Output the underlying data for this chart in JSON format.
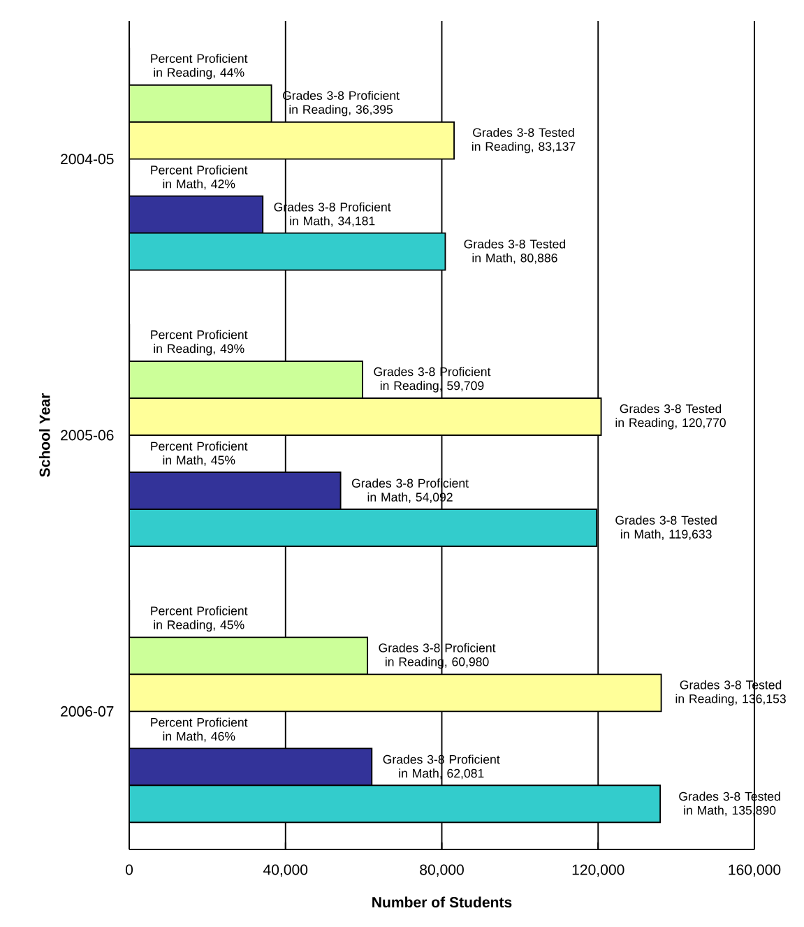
{
  "chart_data": {
    "type": "bar",
    "orientation": "horizontal",
    "categories": [
      "2004-05",
      "2005-06",
      "2006-07"
    ],
    "xlabel": "Number of Students",
    "ylabel": "School Year",
    "xlim": [
      0,
      160000
    ],
    "xticks": [
      0,
      {
        "value": 40000,
        "label": "40,000"
      },
      {
        "value": 80000,
        "label": "80,000"
      },
      {
        "value": 120000,
        "label": "120,000"
      },
      {
        "value": 160000,
        "label": "160,000"
      }
    ],
    "grid": "x",
    "series": [
      {
        "color": "#ffffff",
        "values": [
          44,
          49,
          45
        ],
        "value_labels": [
          "Percent Proficient in Reading, 44%",
          "Percent Proficient in Reading, 49%",
          "Percent Proficient in Reading, 45%"
        ]
      },
      {
        "color": "#ccff99",
        "values": [
          36395,
          59709,
          60980
        ],
        "value_labels": [
          "Grades 3-8 Proficient in Reading, 36,395",
          "Grades 3-8 Proficient in Reading, 59,709",
          "Grades 3-8 Proficient in Reading, 60,980"
        ]
      },
      {
        "color": "#ffff99",
        "values": [
          83137,
          120770,
          136153
        ],
        "value_labels": [
          "Grades 3-8 Tested in Reading, 83,137",
          "Grades 3-8 Tested in Reading, 120,770",
          "Grades 3-8 Tested in Reading, 136,153"
        ]
      },
      {
        "color": "#ffffff",
        "values": [
          42,
          45,
          46
        ],
        "value_labels": [
          "Percent Proficient in Math, 42%",
          "Percent Proficient in Math, 45%",
          "Percent Proficient in Math, 46%"
        ]
      },
      {
        "color": "#333399",
        "values": [
          34181,
          54092,
          62081
        ],
        "value_labels": [
          "Grades 3-8 Proficient in Math, 34,181",
          "Grades 3-8 Proficient in Math, 54,092",
          "Grades 3-8 Proficient in Math, 62,081"
        ]
      },
      {
        "color": "#33cccc",
        "values": [
          80886,
          119633,
          135890
        ],
        "value_labels": [
          "Grades 3-8 Tested in Math, 80,886",
          "Grades 3-8 Tested in Math, 119,633",
          "Grades 3-8 Tested in Math, 135,890"
        ]
      }
    ]
  }
}
